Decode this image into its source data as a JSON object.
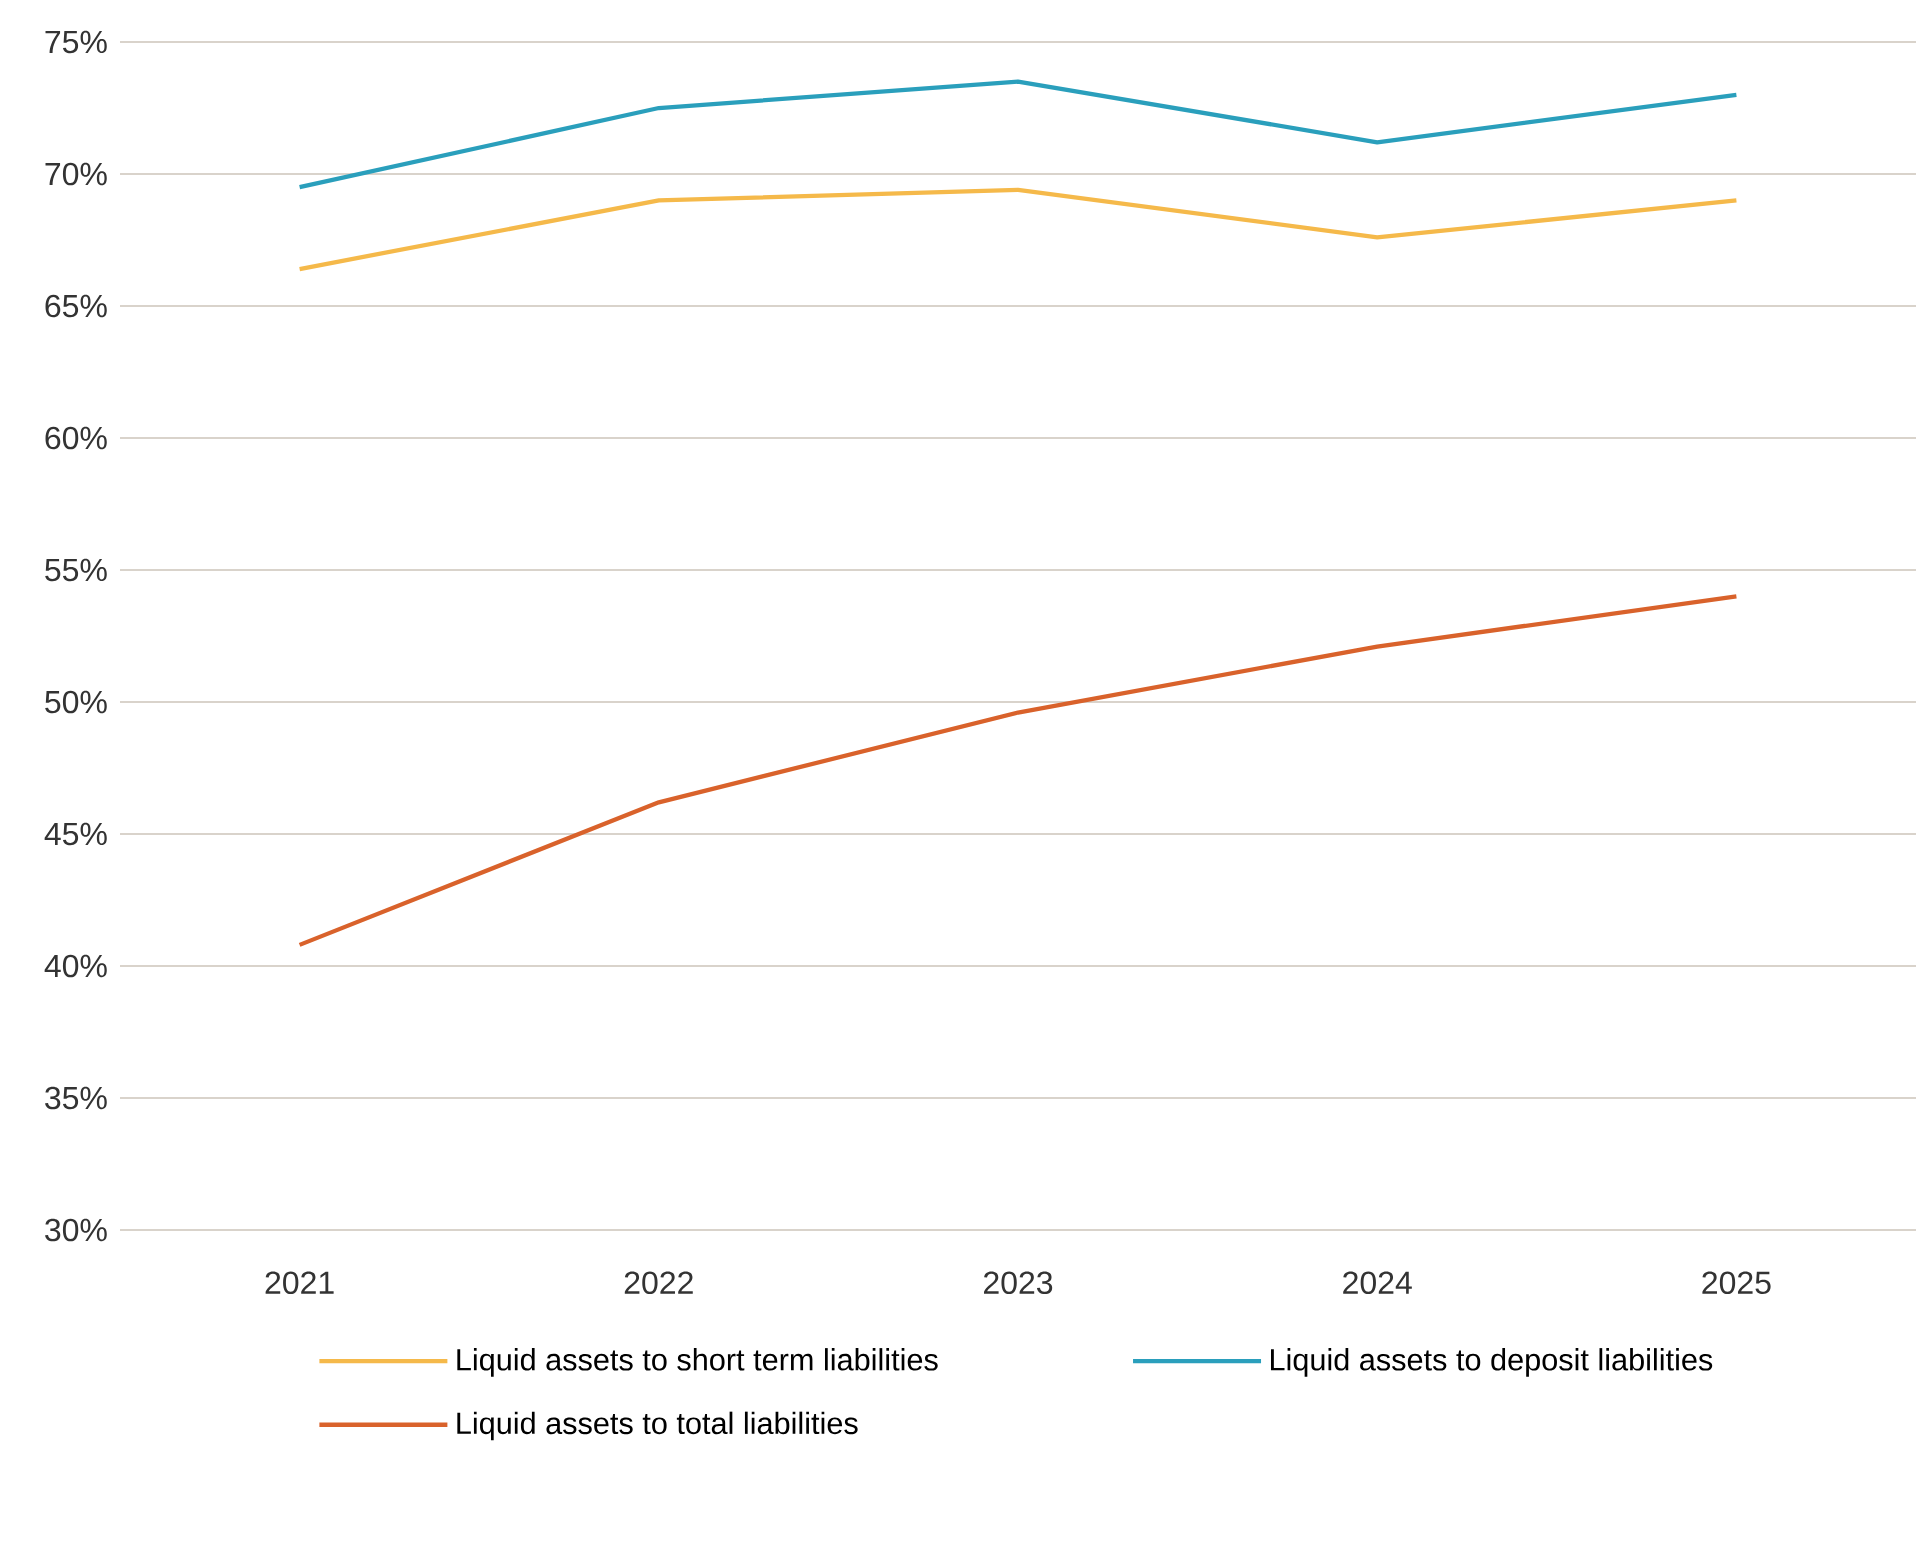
{
  "chart_data": {
    "type": "line",
    "categories": [
      "2021",
      "2022",
      "2023",
      "2024",
      "2025"
    ],
    "series": [
      {
        "name": "Liquid assets to short term liabilities",
        "color": "#f5b94a",
        "values": [
          66.4,
          69.0,
          69.4,
          67.6,
          69.0
        ]
      },
      {
        "name": "Liquid assets to deposit liabilities",
        "color": "#2a9fbc",
        "values": [
          69.5,
          72.5,
          73.5,
          71.2,
          73.0
        ]
      },
      {
        "name": "Liquid assets to total liabilities",
        "color": "#d9622b",
        "values": [
          40.8,
          46.2,
          49.6,
          52.1,
          54.0
        ]
      }
    ],
    "ylim": [
      30,
      75
    ],
    "yticks": [
      {
        "value": 30,
        "label": "30%"
      },
      {
        "value": 35,
        "label": "35%"
      },
      {
        "value": 40,
        "label": "40%"
      },
      {
        "value": 45,
        "label": "45%"
      },
      {
        "value": 50,
        "label": "50%"
      },
      {
        "value": 55,
        "label": "55%"
      },
      {
        "value": 60,
        "label": "60%"
      },
      {
        "value": 65,
        "label": "65%"
      },
      {
        "value": 70,
        "label": "70%"
      },
      {
        "value": 75,
        "label": "75%"
      }
    ],
    "grid": "y",
    "legend": "bottom",
    "marker": "none",
    "line_style": "solid"
  }
}
